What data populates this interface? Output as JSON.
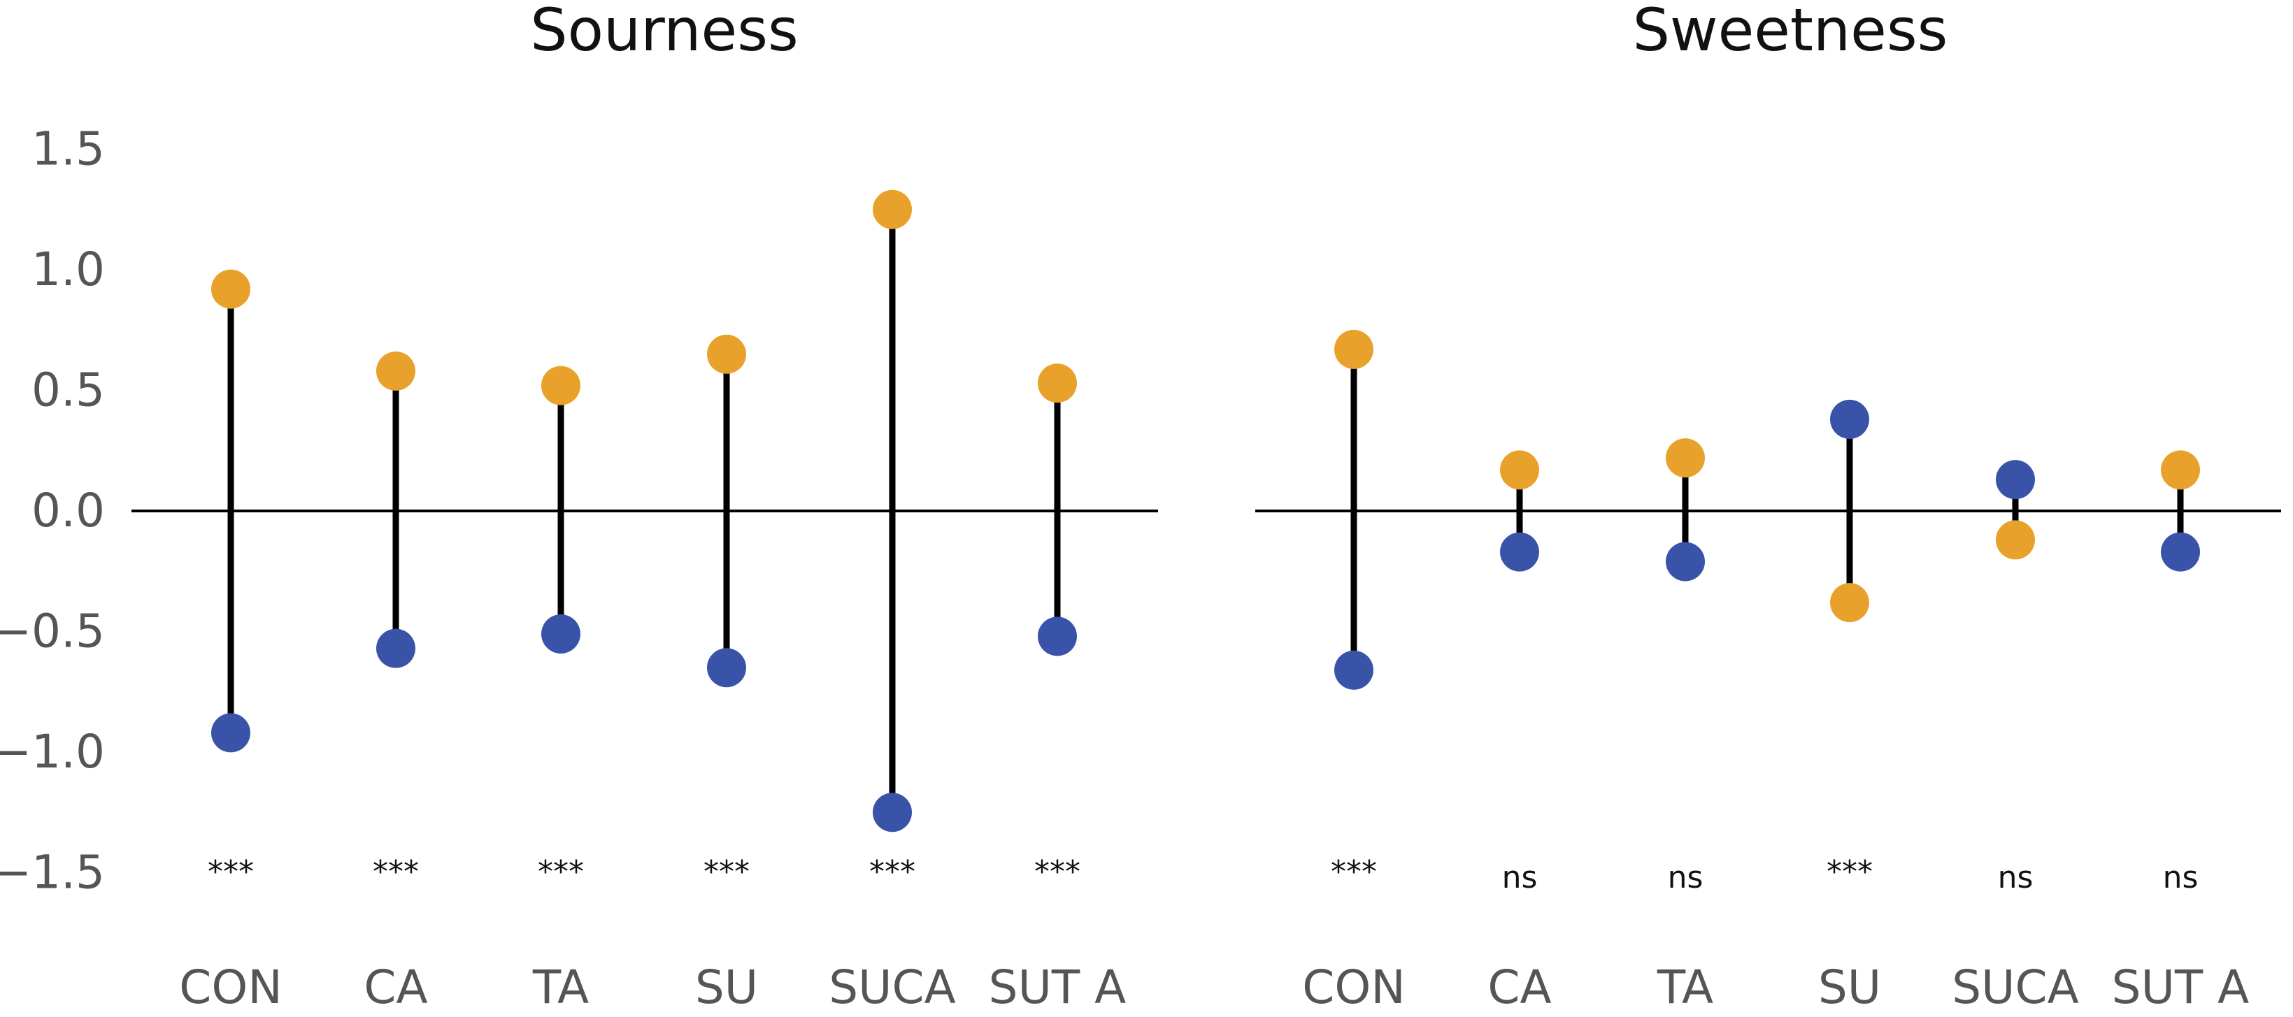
{
  "chart_data": [
    {
      "type": "dumbbell",
      "title": "Sourness",
      "categories": [
        "CON",
        "CA",
        "TA",
        "SU",
        "SUCA",
        "SUT A"
      ],
      "series": [
        {
          "name": "orange",
          "color": "#E8A22B",
          "values": [
            0.92,
            0.58,
            0.52,
            0.65,
            1.25,
            0.53
          ]
        },
        {
          "name": "blue",
          "color": "#3953A8",
          "values": [
            -0.92,
            -0.57,
            -0.51,
            -0.65,
            -1.25,
            -0.52
          ]
        }
      ],
      "significance": [
        "***",
        "***",
        "***",
        "***",
        "***",
        "***"
      ],
      "ylim": [
        -1.5,
        1.5
      ],
      "yticks": [
        {
          "value": 1.5,
          "label": "1.5"
        },
        {
          "value": 1.0,
          "label": "1.0"
        },
        {
          "value": 0.5,
          "label": "0.5"
        },
        {
          "value": 0.0,
          "label": "0.0"
        },
        {
          "value": -0.5,
          "label": "−0.5"
        },
        {
          "value": -1.0,
          "label": "−1.0"
        },
        {
          "value": -1.5,
          "label": "−1.5"
        }
      ],
      "zero_line": true
    },
    {
      "type": "dumbbell",
      "title": "Sweetness",
      "categories": [
        "CON",
        "CA",
        "TA",
        "SU",
        "SUCA",
        "SUT A"
      ],
      "series": [
        {
          "name": "orange",
          "color": "#E8A22B",
          "values": [
            0.67,
            0.17,
            0.22,
            -0.38,
            -0.12,
            0.17
          ]
        },
        {
          "name": "blue",
          "color": "#3953A8",
          "values": [
            -0.66,
            -0.17,
            -0.21,
            0.38,
            0.13,
            -0.17
          ]
        }
      ],
      "significance": [
        "***",
        "ns",
        "ns",
        "***",
        "ns",
        "ns"
      ],
      "ylim": [
        -1.5,
        1.5
      ],
      "zero_line": true
    }
  ]
}
